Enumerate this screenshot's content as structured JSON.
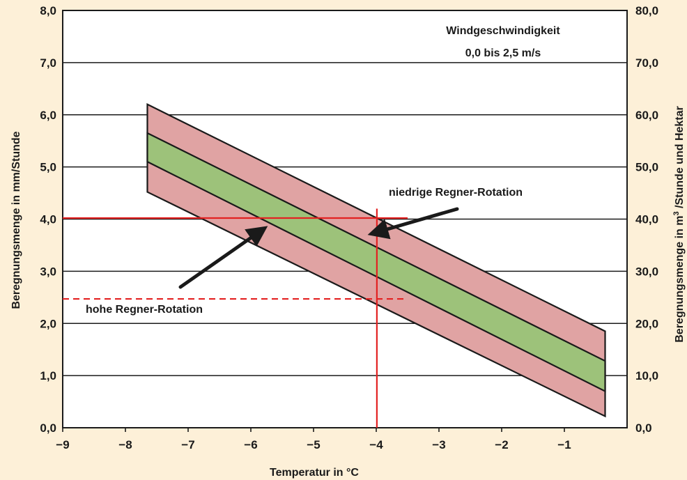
{
  "chart_data": {
    "type": "area",
    "x_label": "Temperatur in °C",
    "y_label_left": "Beregnungsmenge in mm/Stunde",
    "y_label_right_pre": "Beregnungsmenge in m",
    "y_label_right_sup": "3",
    "y_label_right_post": " /Stunde und Hektar",
    "xlim": [
      -9,
      0
    ],
    "ylim": [
      0,
      8
    ],
    "x_ticks": [
      -9,
      -8,
      -7,
      -6,
      -5,
      -4,
      -3,
      -2,
      -1
    ],
    "x_tick_labels": [
      "−9",
      "−8",
      "−7",
      "−6",
      "−5",
      "−4",
      "−3",
      "−2",
      "−1"
    ],
    "y_ticks_left": [
      0,
      1,
      2,
      3,
      4,
      5,
      6,
      7,
      8
    ],
    "y_tick_labels_left": [
      "0,0",
      "1,0",
      "2,0",
      "3,0",
      "4,0",
      "5,0",
      "6,0",
      "7,0",
      "8,0"
    ],
    "y_tick_labels_right": [
      "0,0",
      "10,0",
      "20,0",
      "30,0",
      "40,0",
      "50,0",
      "60,0",
      "70,0",
      "80,0"
    ],
    "grid": "horizontal",
    "bands": [
      {
        "color": "#e0a3a3",
        "x": [
          -7.65,
          -0.35
        ],
        "upper": [
          6.2,
          1.85
        ],
        "lower": [
          4.52,
          0.22
        ]
      },
      {
        "color": "#9dc27a",
        "x": [
          -7.65,
          -0.35
        ],
        "upper": [
          5.65,
          1.28
        ],
        "lower": [
          5.1,
          0.7
        ]
      }
    ],
    "reference_lines": [
      {
        "orientation": "horizontal",
        "y": 4.02,
        "x_range": [
          -9,
          -3.5
        ],
        "style": "solid",
        "color": "#e32222"
      },
      {
        "orientation": "horizontal",
        "y": 2.47,
        "x_range": [
          -9,
          -3.5
        ],
        "style": "dashed",
        "color": "#e32222"
      },
      {
        "orientation": "vertical",
        "x": -3.99,
        "y_range": [
          0,
          4.2
        ],
        "style": "solid",
        "color": "#e32222"
      }
    ],
    "annotations": {
      "wind_line1": "Windgeschwindigkeit",
      "wind_line2": "0,0 bis 2,5 m/s",
      "low_rotation": "niedrige Regner-Rotation",
      "high_rotation": "hohe Regner-Rotation"
    }
  }
}
